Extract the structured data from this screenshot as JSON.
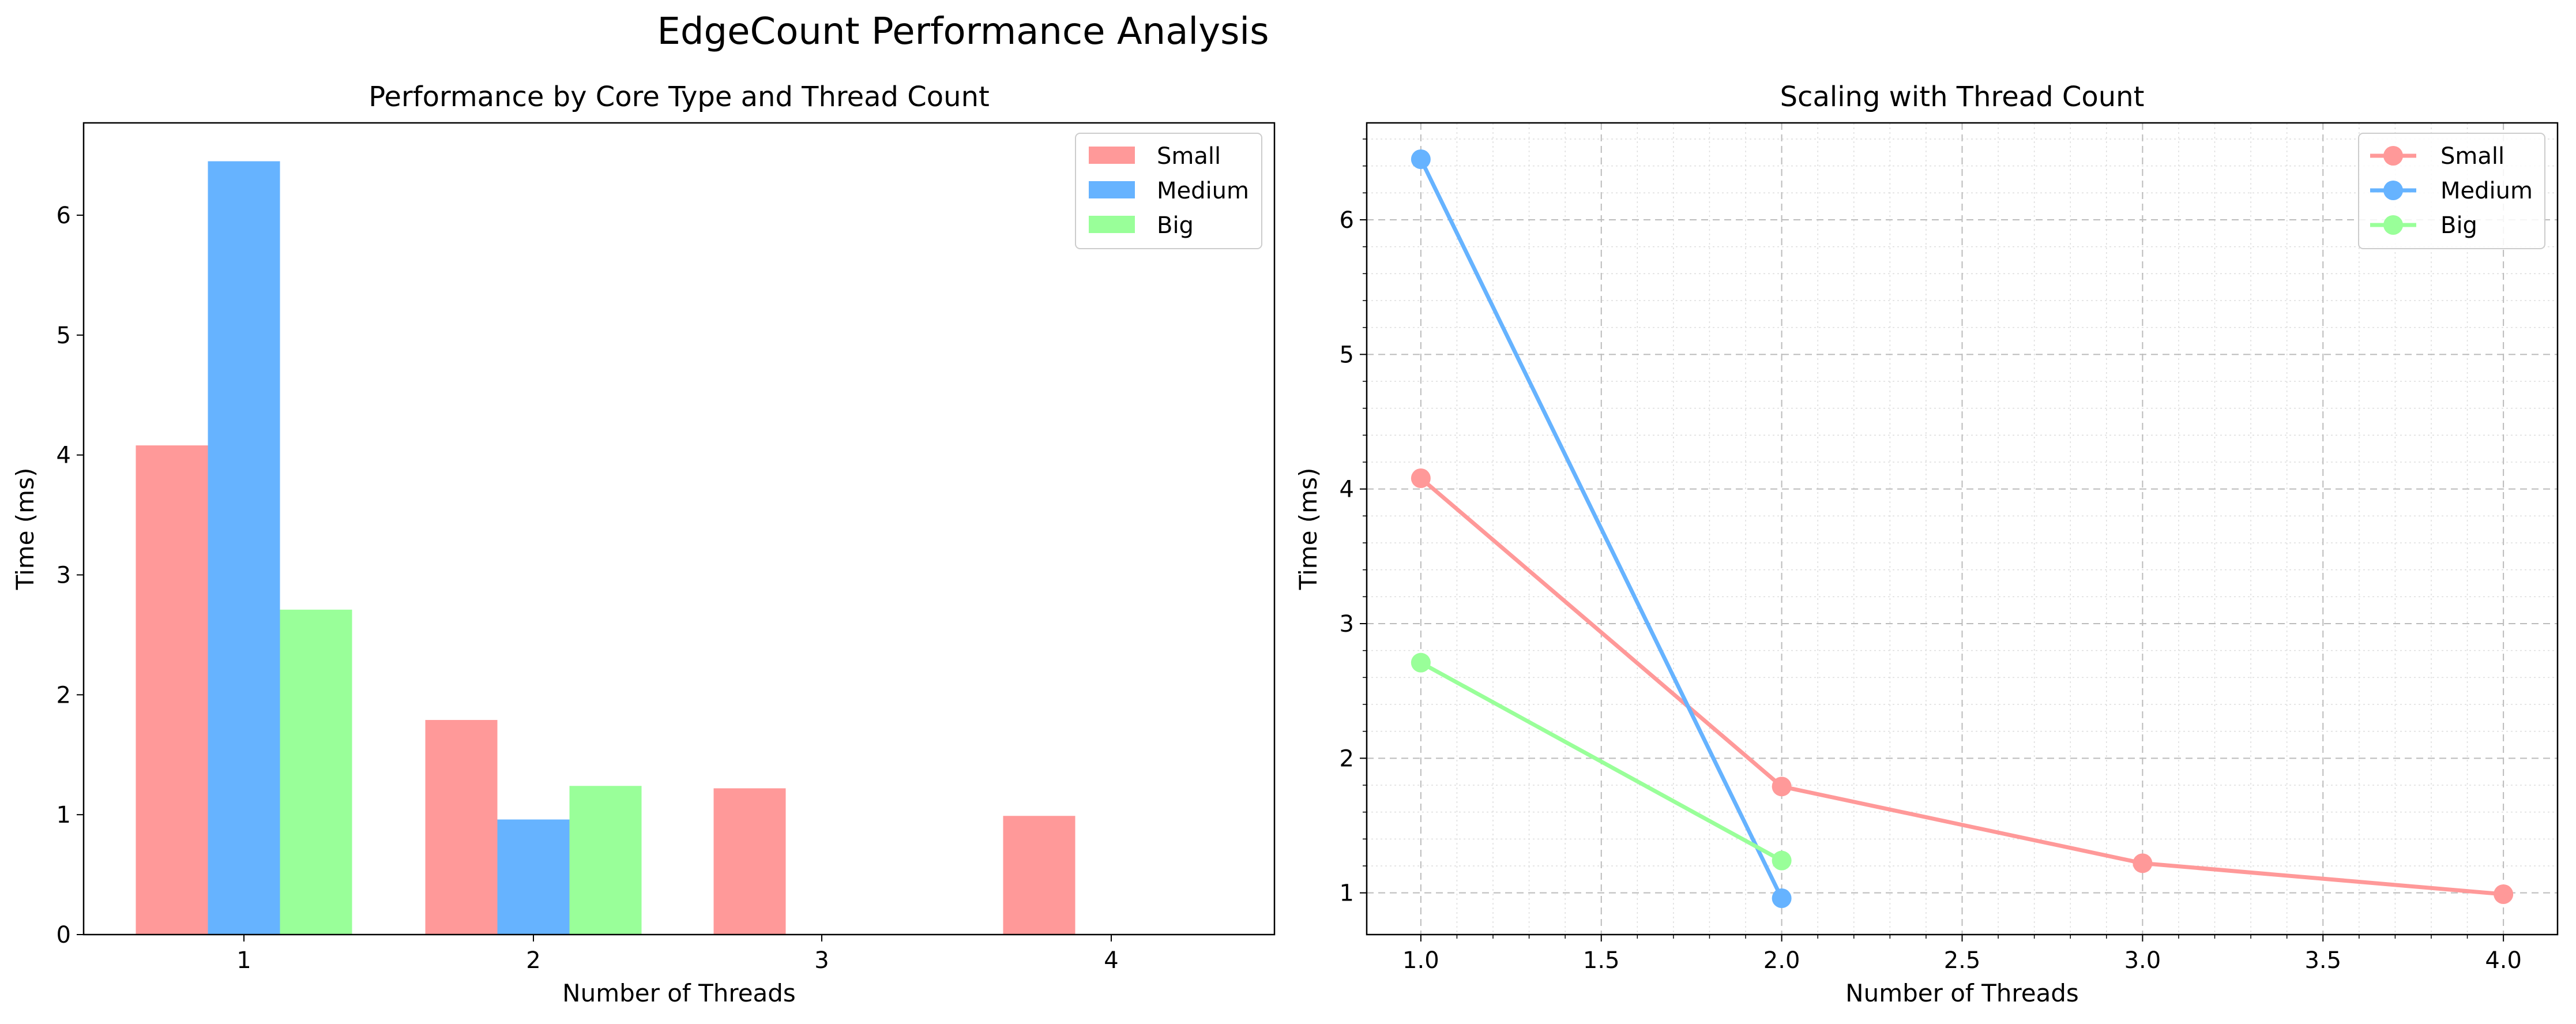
{
  "figure": {
    "suptitle": "EdgeCount Performance Analysis"
  },
  "chart_data": [
    {
      "type": "bar",
      "title": "Performance by Core Type and Thread Count",
      "xlabel": "Number of Threads",
      "ylabel": "Time (ms)",
      "categories": [
        "1",
        "2",
        "3",
        "4"
      ],
      "series": [
        {
          "name": "Small",
          "color": "#ff9999",
          "values": [
            4.08,
            1.79,
            1.22,
            0.99
          ]
        },
        {
          "name": "Medium",
          "color": "#66b3ff",
          "values": [
            6.45,
            0.96,
            null,
            null
          ]
        },
        {
          "name": "Big",
          "color": "#99ff99",
          "values": [
            2.71,
            1.24,
            null,
            null
          ]
        }
      ],
      "ylim": [
        0,
        6.77
      ],
      "yticks": [
        0,
        1,
        2,
        3,
        4,
        5,
        6
      ],
      "grid": false,
      "legend": "top-right"
    },
    {
      "type": "line",
      "title": "Scaling with Thread Count",
      "xlabel": "Number of Threads",
      "ylabel": "Time (ms)",
      "series": [
        {
          "name": "Small",
          "color": "#ff9999",
          "x": [
            1,
            2,
            3,
            4
          ],
          "y": [
            4.08,
            1.79,
            1.22,
            0.99
          ]
        },
        {
          "name": "Medium",
          "color": "#66b3ff",
          "x": [
            1,
            2
          ],
          "y": [
            6.45,
            0.96
          ]
        },
        {
          "name": "Big",
          "color": "#99ff99",
          "x": [
            1,
            2
          ],
          "y": [
            2.71,
            1.24
          ]
        }
      ],
      "xlim": [
        0.85,
        4.15
      ],
      "ylim": [
        0.69,
        6.72
      ],
      "xticks": [
        "1.0",
        "1.5",
        "2.0",
        "2.5",
        "3.0",
        "3.5",
        "4.0"
      ],
      "yticks": [
        1,
        2,
        3,
        4,
        5,
        6
      ],
      "grid": true,
      "minor_grid": true,
      "legend": "top-right"
    }
  ]
}
